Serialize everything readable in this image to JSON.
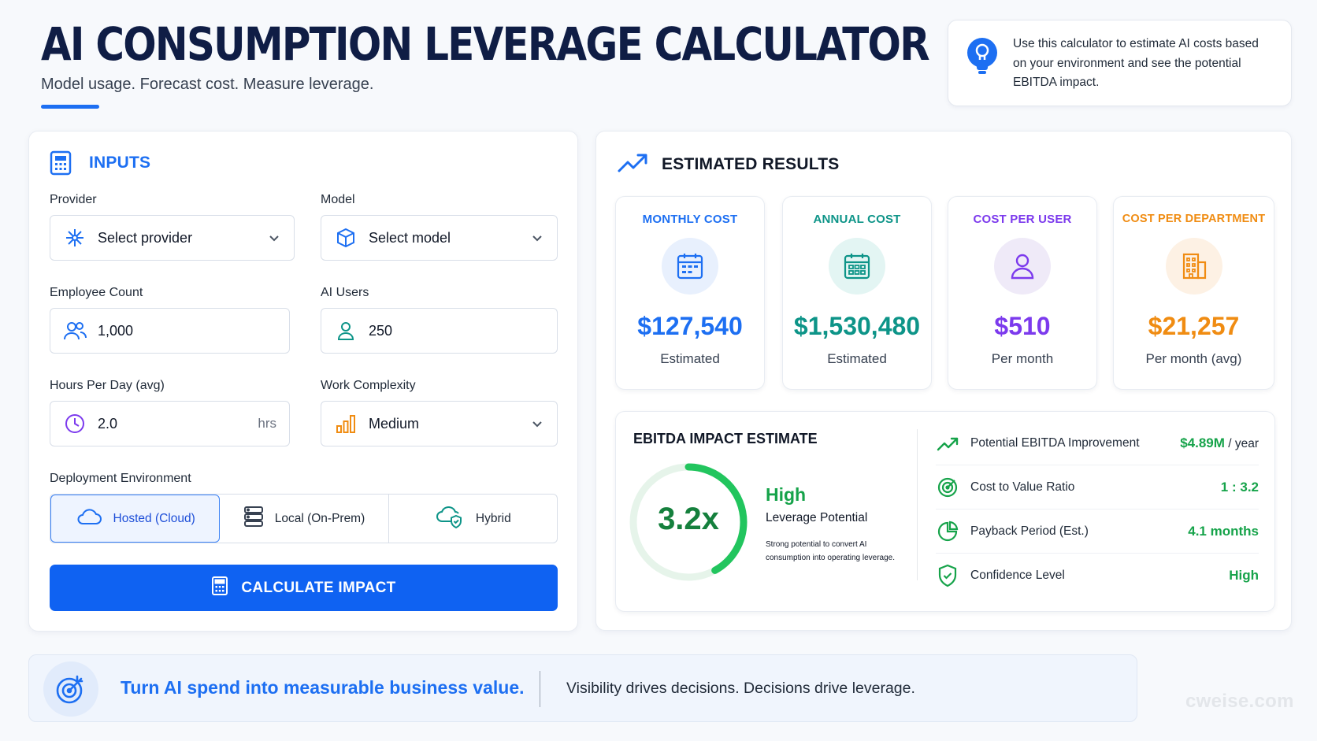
{
  "header": {
    "title": "AI CONSUMPTION LEVERAGE CALCULATOR",
    "subtitle": "Model usage. Forecast cost. Measure leverage.",
    "info_icon": "lightbulb-icon",
    "info_text": "Use this calculator to estimate AI costs based on your environment and see the potential EBITDA impact."
  },
  "inputs": {
    "heading": "INPUTS",
    "heading_icon": "calculator-icon",
    "provider": {
      "label": "Provider",
      "value": "Select provider",
      "icon": "network-icon"
    },
    "model": {
      "label": "Model",
      "value": "Select model",
      "icon": "cube-icon"
    },
    "employee_count": {
      "label": "Employee Count",
      "value": "1,000",
      "icon": "users-icon"
    },
    "ai_users": {
      "label": "AI Users",
      "value": "250",
      "icon": "user-icon"
    },
    "hours_per_day": {
      "label": "Hours Per Day (avg)",
      "value": "2.0",
      "unit": "hrs",
      "icon": "clock-icon"
    },
    "work_complexity": {
      "label": "Work Complexity",
      "value": "Medium",
      "icon": "bar-chart-icon"
    },
    "deployment": {
      "label": "Deployment Environment",
      "options": [
        {
          "label": "Hosted (Cloud)",
          "icon": "cloud-icon",
          "selected": true
        },
        {
          "label": "Local (On-Prem)",
          "icon": "server-icon",
          "selected": false
        },
        {
          "label": "Hybrid",
          "icon": "cloud-shield-icon",
          "selected": false
        }
      ]
    },
    "calculate_label": "CALCULATE IMPACT"
  },
  "results": {
    "heading": "ESTIMATED RESULTS",
    "heading_icon": "trend-up-icon",
    "metrics": [
      {
        "label": "MONTHLY COST",
        "value": "$127,540",
        "sub": "Estimated",
        "color": "#1d6ff2",
        "bg": "#e8f0fd",
        "icon": "calendar-icon"
      },
      {
        "label": "ANNUAL COST",
        "value": "$1,530,480",
        "sub": "Estimated",
        "color": "#0d9488",
        "bg": "#e3f5f3",
        "icon": "calendar-grid-icon"
      },
      {
        "label": "COST PER USER",
        "value": "$510",
        "sub": "Per month",
        "color": "#7c3aed",
        "bg": "#efeaf8",
        "icon": "user-icon"
      },
      {
        "label": "COST PER DEPARTMENT",
        "value": "$21,257",
        "sub": "Per month (avg)",
        "color": "#f08c12",
        "bg": "#fdf1e4",
        "icon": "building-icon"
      }
    ],
    "ebitda": {
      "heading": "EBITDA IMPACT ESTIMATE",
      "gauge_value": "3.2x",
      "gauge_fraction": 0.42,
      "level": "High",
      "level_sub": "Leverage Potential",
      "description": "Strong potential to convert AI consumption into operating leverage.",
      "rows": [
        {
          "label": "Potential EBITDA Improvement",
          "value": "$4.89M",
          "suffix": " / year",
          "icon": "trend-up-icon"
        },
        {
          "label": "Cost to Value Ratio",
          "value": "1 : 3.2",
          "suffix": "",
          "icon": "target-icon"
        },
        {
          "label": "Payback Period (Est.)",
          "value": "4.1 months",
          "suffix": "",
          "icon": "pie-chart-icon"
        },
        {
          "label": "Confidence Level",
          "value": "High",
          "suffix": "",
          "icon": "shield-check-icon"
        }
      ]
    }
  },
  "banner": {
    "icon": "target-arrow-icon",
    "strong": "Turn AI spend into measurable business value.",
    "text": "Visibility drives decisions. Decisions drive leverage."
  },
  "watermark": "cweise.com"
}
